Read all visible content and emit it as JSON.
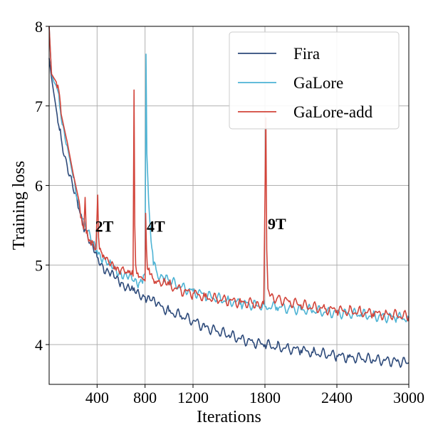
{
  "chart_data": {
    "type": "line",
    "title": "",
    "xlabel": "Iterations",
    "ylabel": "Training loss",
    "xlim": [
      0,
      3000
    ],
    "ylim": [
      3.5,
      8
    ],
    "xticks": [
      400,
      800,
      1200,
      1800,
      2400,
      3000
    ],
    "xtick_labels": [
      "400",
      "800",
      "1200",
      "1800",
      "2400",
      "3000"
    ],
    "yticks": [
      4,
      5,
      6,
      7,
      8
    ],
    "ytick_labels": [
      "4",
      "5",
      "6",
      "7",
      "8"
    ],
    "grid": true,
    "legend_position": "top-right",
    "series": [
      {
        "name": "Fira",
        "color": "#2d4a7a",
        "x": [
          0,
          20,
          40,
          60,
          80,
          100,
          150,
          200,
          250,
          300,
          350,
          400,
          450,
          500,
          550,
          600,
          650,
          700,
          750,
          800,
          850,
          900,
          1000,
          1100,
          1200,
          1300,
          1400,
          1500,
          1600,
          1700,
          1800,
          1900,
          2000,
          2100,
          2200,
          2300,
          2400,
          2500,
          2600,
          2700,
          2800,
          2900,
          3000
        ],
        "values": [
          7.6,
          7.35,
          7.15,
          6.95,
          6.75,
          6.6,
          6.25,
          5.95,
          5.7,
          5.45,
          5.25,
          5.1,
          4.98,
          4.9,
          4.83,
          4.78,
          4.73,
          4.68,
          4.64,
          4.6,
          4.55,
          4.5,
          4.42,
          4.36,
          4.3,
          4.22,
          4.17,
          4.12,
          4.07,
          4.03,
          4.0,
          3.97,
          3.95,
          3.93,
          3.9,
          3.88,
          3.86,
          3.84,
          3.83,
          3.81,
          3.8,
          3.79,
          3.77
        ]
      },
      {
        "name": "GaLore",
        "color": "#4db3d4",
        "x": [
          0,
          20,
          40,
          60,
          80,
          100,
          150,
          200,
          250,
          300,
          350,
          400,
          450,
          500,
          550,
          600,
          650,
          700,
          750,
          780,
          800,
          808,
          815,
          830,
          850,
          870,
          900,
          950,
          1000,
          1100,
          1200,
          1300,
          1400,
          1500,
          1600,
          1700,
          1800,
          1900,
          2000,
          2100,
          2200,
          2300,
          2400,
          2500,
          2600,
          2700,
          2800,
          2900,
          3000
        ],
        "values": [
          8.0,
          7.4,
          7.3,
          7.25,
          7.15,
          6.85,
          6.5,
          6.1,
          5.75,
          5.5,
          5.3,
          5.18,
          5.08,
          5.0,
          4.95,
          4.9,
          4.85,
          4.8,
          4.78,
          4.77,
          4.9,
          7.65,
          6.4,
          5.8,
          5.3,
          5.0,
          4.9,
          4.85,
          4.8,
          4.72,
          4.67,
          4.62,
          4.58,
          4.55,
          4.52,
          4.5,
          4.48,
          4.47,
          4.46,
          4.44,
          4.43,
          4.41,
          4.4,
          4.39,
          4.38,
          4.36,
          4.35,
          4.34,
          4.33
        ]
      },
      {
        "name": "GaLore-add",
        "color": "#d2443a",
        "x": [
          0,
          20,
          40,
          60,
          80,
          100,
          150,
          200,
          250,
          270,
          290,
          300,
          310,
          330,
          350,
          390,
          405,
          412,
          420,
          440,
          460,
          500,
          550,
          600,
          650,
          680,
          700,
          708,
          714,
          722,
          740,
          760,
          790,
          800,
          805,
          812,
          820,
          840,
          870,
          900,
          950,
          1000,
          1100,
          1200,
          1300,
          1400,
          1500,
          1600,
          1700,
          1790,
          1808,
          1815,
          1825,
          1850,
          1900,
          2000,
          2100,
          2200,
          2300,
          2400,
          2500,
          2600,
          2700,
          2800,
          2900,
          3000
        ],
        "values": [
          8.0,
          7.4,
          7.35,
          7.3,
          7.2,
          6.9,
          6.55,
          6.15,
          5.8,
          5.6,
          5.45,
          5.85,
          5.4,
          5.3,
          5.25,
          5.2,
          5.88,
          5.35,
          5.2,
          5.15,
          5.1,
          5.02,
          4.98,
          4.94,
          4.9,
          4.88,
          4.86,
          7.2,
          5.5,
          5.0,
          4.9,
          4.85,
          4.82,
          4.8,
          5.65,
          5.2,
          4.95,
          4.88,
          4.82,
          4.8,
          4.77,
          4.75,
          4.68,
          4.64,
          4.6,
          4.57,
          4.55,
          4.53,
          4.52,
          4.51,
          6.85,
          5.2,
          4.7,
          4.62,
          4.58,
          4.54,
          4.5,
          4.47,
          4.45,
          4.43,
          4.42,
          4.41,
          4.39,
          4.38,
          4.37,
          4.35
        ]
      }
    ],
    "annotations": [
      {
        "text": "2T",
        "x": 460,
        "y": 5.42
      },
      {
        "text": "4T",
        "x": 890,
        "y": 5.42
      },
      {
        "text": "9T",
        "x": 1900,
        "y": 5.45
      }
    ]
  }
}
